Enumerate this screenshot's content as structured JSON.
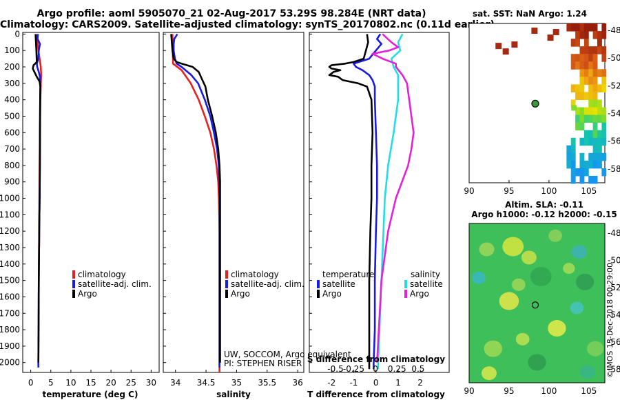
{
  "header": {
    "line1": "Argo profile: aoml 5905070_21 02-Aug-2017 53.29S 98.284E (NRT data)",
    "line2": "Climatology: CARS2009. Satellite-adjusted climatology: synTS_20170802.nc (0.11d earlier)"
  },
  "colors": {
    "climatology": "#e8201e",
    "satellite": "#1a1ae6",
    "argo": "#000000",
    "sat_salinity": "#22dde6",
    "argo_salinity": "#e620d8"
  },
  "chart_data": [
    {
      "id": "temperature",
      "type": "line",
      "xlabel": "temperature (deg C)",
      "ylabel": "",
      "xlim": [
        -2,
        32
      ],
      "ylim": [
        2060,
        -10
      ],
      "xticks": [
        0,
        5,
        10,
        15,
        20,
        25,
        30
      ],
      "yticks": [
        0,
        100,
        200,
        300,
        400,
        500,
        600,
        700,
        800,
        900,
        1000,
        1100,
        1200,
        1300,
        1400,
        1500,
        1600,
        1700,
        1800,
        1900,
        2000
      ],
      "legend": [
        "climatology",
        "satellite-adj. clim.",
        "Argo"
      ],
      "series": [
        {
          "name": "climatology",
          "depth": [
            0,
            50,
            100,
            150,
            200,
            250,
            300,
            400,
            600,
            800,
            1000,
            1200,
            1300
          ],
          "values": [
            1.6,
            1.7,
            1.9,
            2.2,
            2.5,
            2.6,
            2.5,
            2.4,
            2.3,
            2.2,
            2.15,
            2.1,
            2.1
          ]
        },
        {
          "name": "satellite-adj. clim.",
          "depth": [
            0,
            30,
            60,
            100,
            150,
            180,
            200,
            230,
            260,
            300,
            400,
            600,
            800,
            1000,
            1200,
            1500,
            1800,
            2000,
            2030
          ],
          "values": [
            1.8,
            1.7,
            2.3,
            2.0,
            1.9,
            1.5,
            1.6,
            2.0,
            2.3,
            2.4,
            2.35,
            2.3,
            2.3,
            2.2,
            2.1,
            2.0,
            1.95,
            1.9,
            1.9
          ]
        },
        {
          "name": "Argo",
          "depth": [
            0,
            50,
            100,
            170,
            190,
            210,
            230,
            260,
            290,
            320,
            400,
            600,
            800,
            1000,
            1200,
            1500,
            1800,
            2000
          ],
          "values": [
            1.2,
            1.3,
            1.4,
            1.5,
            0.7,
            0.5,
            0.9,
            1.5,
            2.2,
            2.4,
            2.35,
            2.3,
            2.25,
            2.2,
            2.1,
            2.0,
            1.95,
            1.9
          ]
        }
      ]
    },
    {
      "id": "salinity",
      "type": "line",
      "xlabel": "salinity",
      "ylabel": "",
      "xlim": [
        33.8,
        36.1
      ],
      "ylim": [
        2060,
        -10
      ],
      "xticks": [
        34,
        34.5,
        35,
        35.5,
        36
      ],
      "legend": [
        "climatology",
        "satellite-adj. clim.",
        "Argo"
      ],
      "series": [
        {
          "name": "climatology",
          "depth": [
            0,
            180,
            220,
            300,
            400,
            500,
            600,
            700,
            800,
            900,
            1000,
            1200,
            1500,
            2000,
            2060
          ],
          "values": [
            33.95,
            33.96,
            34.1,
            34.25,
            34.38,
            34.48,
            34.57,
            34.63,
            34.67,
            34.7,
            34.71,
            34.72,
            34.72,
            34.72,
            34.72
          ]
        },
        {
          "name": "satellite-adj. clim.",
          "depth": [
            0,
            30,
            60,
            100,
            150,
            180,
            200,
            250,
            300,
            400,
            500,
            600,
            700,
            800,
            1000,
            1200,
            1500,
            2000,
            2030
          ],
          "values": [
            34.03,
            33.98,
            33.97,
            33.97,
            33.99,
            34.02,
            34.1,
            34.26,
            34.37,
            34.48,
            34.57,
            34.63,
            34.68,
            34.71,
            34.72,
            34.72,
            34.72,
            34.72,
            34.72
          ]
        },
        {
          "name": "Argo",
          "depth": [
            0,
            50,
            100,
            150,
            170,
            180,
            200,
            230,
            280,
            320,
            400,
            500,
            600,
            700,
            800,
            900,
            1000,
            1200,
            1500,
            2000
          ],
          "values": [
            33.93,
            33.94,
            33.95,
            33.97,
            34.02,
            34.1,
            34.28,
            34.38,
            34.44,
            34.49,
            34.53,
            34.6,
            34.66,
            34.7,
            34.72,
            34.73,
            34.73,
            34.73,
            34.73,
            34.73
          ]
        }
      ],
      "annotations": [
        "UW, SOCCOM, Argo equivalent",
        "PI: STEPHEN RISER"
      ]
    },
    {
      "id": "difference",
      "type": "line",
      "xlabel": "T difference from climatology",
      "top_xlabel": "S difference from climatology",
      "xlim": [
        -3,
        3.3
      ],
      "ylim": [
        2060,
        -10
      ],
      "xticks": [
        -2,
        -1,
        0,
        1,
        2
      ],
      "top_xticks": [
        "-0.5",
        "-0.25",
        "0",
        "0.25",
        "0.5"
      ],
      "legend_left_title": "temperature",
      "legend_right_title": "salinity",
      "legend_left": [
        "satellite",
        "Argo"
      ],
      "legend_right": [
        "satellite",
        "Argo"
      ],
      "series": [
        {
          "name": "T satellite",
          "depth": [
            0,
            30,
            60,
            100,
            150,
            180,
            200,
            220,
            250,
            280,
            320,
            400,
            600,
            800,
            1000,
            1200,
            1500,
            1800,
            2000,
            2040
          ],
          "values": [
            0.2,
            0.05,
            0.25,
            0.0,
            -0.3,
            -1.0,
            -0.9,
            -0.6,
            -0.3,
            -0.15,
            -0.05,
            -0.05,
            0.0,
            0.05,
            0.05,
            0.0,
            -0.05,
            -0.05,
            -0.1,
            -0.1
          ]
        },
        {
          "name": "T Argo",
          "depth": [
            0,
            50,
            100,
            150,
            170,
            180,
            190,
            200,
            210,
            220,
            230,
            250,
            260,
            280,
            300,
            320,
            400,
            600,
            800,
            1000,
            1200,
            1500,
            2000,
            2040
          ],
          "values": [
            -0.4,
            -0.35,
            -0.45,
            -0.55,
            -1.0,
            -1.4,
            -2.0,
            -2.1,
            -2.0,
            -1.6,
            -1.9,
            -2.1,
            -1.7,
            -1.5,
            -0.8,
            -0.4,
            -0.2,
            -0.15,
            -0.2,
            -0.2,
            -0.25,
            -0.3,
            -0.3,
            -0.3
          ]
        },
        {
          "name": "S satellite",
          "depth": [
            0,
            50,
            100,
            150,
            200,
            250,
            300,
            400,
            600,
            800,
            1000,
            1500,
            2000,
            2040
          ],
          "values": [
            1.2,
            1.0,
            1.1,
            0.7,
            0.8,
            1.0,
            1.0,
            1.0,
            0.8,
            0.55,
            0.4,
            0.25,
            0.1,
            0.1
          ]
        },
        {
          "name": "S Argo",
          "depth": [
            0,
            50,
            80,
            100,
            120,
            150,
            180,
            200,
            250,
            300,
            400,
            500,
            600,
            700,
            800,
            1000,
            1200,
            1500,
            2000
          ],
          "values": [
            0.3,
            0.7,
            1.0,
            0.6,
            -0.15,
            0.3,
            0.9,
            0.9,
            1.2,
            1.4,
            1.5,
            1.6,
            1.7,
            1.6,
            1.45,
            0.9,
            0.55,
            0.25,
            0.05
          ]
        }
      ]
    },
    {
      "id": "sst-map",
      "type": "heatmap",
      "title": "sat. SST: NaN Argo: 1.24",
      "xlim": [
        90,
        107
      ],
      "ylim": [
        -59,
        -47.5
      ],
      "xticks": [
        90,
        95,
        100,
        105
      ],
      "yticks": [
        -48,
        -50,
        -52,
        -54,
        -56,
        -58
      ],
      "argo_position": {
        "lon": 98.284,
        "lat": -53.29
      }
    },
    {
      "id": "sla-map",
      "type": "heatmap",
      "title": "Altim. SLA: -0.11",
      "subtitle": "Argo h1000: -0.12 h2000: -0.15",
      "xlim": [
        90,
        107
      ],
      "ylim": [
        -59,
        -47.3
      ],
      "xticks": [
        90,
        95,
        100,
        105
      ],
      "yticks": [
        -48,
        -50,
        -52,
        -54,
        -56,
        -58
      ],
      "argo_position": {
        "lon": 98.284,
        "lat": -53.29
      },
      "watermark": "©IMOS 13-Dec-2018 00:29:00"
    }
  ]
}
